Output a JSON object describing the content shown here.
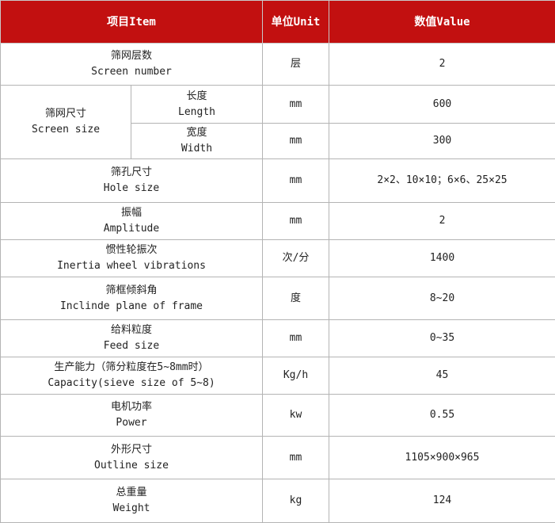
{
  "header": {
    "item": "项目Item",
    "unit": "单位Unit",
    "value": "数值Value"
  },
  "rows": [
    {
      "zh": "筛网层数",
      "en": "Screen number",
      "unit": "层",
      "value": "2"
    },
    {
      "zh": "筛网尺寸",
      "en": "Screen size",
      "sub": [
        {
          "zh": "长度",
          "en": "Length",
          "unit": "mm",
          "value": "600"
        },
        {
          "zh": "宽度",
          "en": "Width",
          "unit": "mm",
          "value": "300"
        }
      ]
    },
    {
      "zh": "筛孔尺寸",
      "en": "Hole size",
      "unit": "mm",
      "value": "2×2、10×10；6×6、25×25"
    },
    {
      "zh": "振幅",
      "en": "Amplitude",
      "unit": "mm",
      "value": "2"
    },
    {
      "zh": "惯性轮振次",
      "en": "Inertia wheel vibrations",
      "unit": "次/分",
      "value": "1400"
    },
    {
      "zh": "筛框倾斜角",
      "en": "Inclinde plane of frame",
      "unit": "度",
      "value": "8~20"
    },
    {
      "zh": "给料粒度",
      "en": "Feed size",
      "unit": "mm",
      "value": "0~35"
    },
    {
      "zh": "生产能力（筛分粒度在5~8mm时）",
      "en": "Capacity(sieve size of 5~8)",
      "unit": "Kg/h",
      "value": "45"
    },
    {
      "zh": "电机功率",
      "en": "Power",
      "unit": "kw",
      "value": "0.55"
    },
    {
      "zh": "外形尺寸",
      "en": "Outline size",
      "unit": "mm",
      "value": "1105×900×965"
    },
    {
      "zh": "总重量",
      "en": "Weight",
      "unit": "kg",
      "value": "124"
    }
  ]
}
